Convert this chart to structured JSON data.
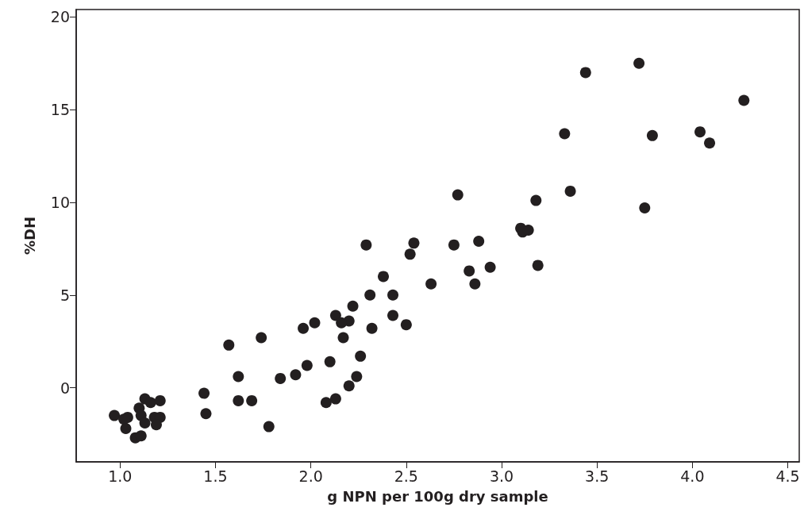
{
  "chart_data": {
    "type": "scatter",
    "xlabel": "g NPN per 100g dry sample",
    "ylabel": "%DH",
    "xlim": [
      0.77,
      4.56
    ],
    "ylim": [
      -4,
      20.4
    ],
    "xticks": [
      {
        "value": 1,
        "label": "1.0"
      },
      {
        "value": 1.5,
        "label": "1.5"
      },
      {
        "value": 2,
        "label": "2.0"
      },
      {
        "value": 2.5,
        "label": "2.5"
      },
      {
        "value": 3,
        "label": "3.0"
      },
      {
        "value": 3.5,
        "label": "3.5"
      },
      {
        "value": 4,
        "label": "4.0"
      },
      {
        "value": 4.5,
        "label": "4.5"
      }
    ],
    "yticks": [
      0,
      5,
      10,
      15,
      20
    ],
    "grid": false,
    "marker": "circle",
    "series": [
      {
        "color": "#231f20",
        "x": [
          0.97,
          1.04,
          1.02,
          1.03,
          1.08,
          1.11,
          1.1,
          1.13,
          1.16,
          1.21,
          1.11,
          1.13,
          1.18,
          1.21,
          1.19,
          1.44,
          1.45,
          1.57,
          1.62,
          1.62,
          1.69,
          1.74,
          1.78,
          1.84,
          1.92,
          1.96,
          1.98,
          2.29,
          2.54,
          2.52,
          2.75,
          2.88,
          3.1,
          3.11,
          3.14,
          2.38,
          2.63,
          2.83,
          2.94,
          2.86,
          2.31,
          2.43,
          2.22,
          2.13,
          2.2,
          2.16,
          2.02,
          2.43,
          2.5,
          2.32,
          2.17,
          2.1,
          2.26,
          2.24,
          2.2,
          2.13,
          2.08,
          3.33,
          3.79,
          4.04,
          4.09,
          3.36,
          3.18,
          3.75,
          3.19,
          3.44,
          3.72,
          4.27,
          2.77
        ],
        "values": [
          -1.5,
          -1.6,
          -1.7,
          -2.2,
          -2.7,
          -2.6,
          -1.1,
          -0.6,
          -0.8,
          -0.7,
          -1.5,
          -1.9,
          -1.6,
          -1.6,
          -2.0,
          -0.3,
          -1.4,
          2.3,
          0.6,
          -0.7,
          -0.7,
          2.7,
          -2.1,
          0.5,
          0.7,
          3.2,
          1.2,
          7.7,
          7.8,
          7.2,
          7.7,
          7.9,
          8.6,
          8.4,
          8.5,
          6.0,
          5.6,
          6.3,
          6.5,
          5.6,
          5.0,
          5.0,
          4.4,
          3.9,
          3.6,
          3.5,
          3.5,
          3.9,
          3.4,
          3.2,
          2.7,
          1.4,
          1.7,
          0.6,
          0.1,
          -0.6,
          -0.8,
          13.7,
          13.6,
          13.8,
          13.2,
          10.6,
          10.1,
          9.7,
          6.6,
          17.0,
          17.5,
          15.5,
          10.4
        ]
      }
    ]
  }
}
